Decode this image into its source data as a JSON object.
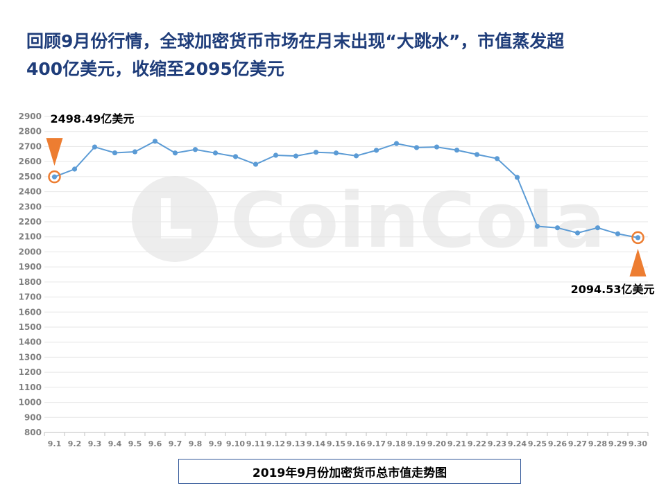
{
  "headline": {
    "line1": "回顾9月份行情，全球加密货币市场在月末出现“大跳水”，市值蒸发超",
    "line2": "400亿美元，收缩至2095亿美元"
  },
  "watermark": {
    "text": "CoinCola"
  },
  "chart_data": {
    "type": "line",
    "title": "2019年9月份加密货币总市值走势图",
    "xlabel": "",
    "ylabel": "",
    "ylim": [
      800,
      2900
    ],
    "yticks": [
      800,
      900,
      1000,
      1100,
      1200,
      1300,
      1400,
      1500,
      1600,
      1700,
      1800,
      1900,
      2000,
      2100,
      2200,
      2300,
      2400,
      2500,
      2600,
      2700,
      2800,
      2900
    ],
    "grid": true,
    "categories": [
      "9.1",
      "9.2",
      "9.3",
      "9.4",
      "9.5",
      "9.6",
      "9.7",
      "9.8",
      "9.9",
      "9.10",
      "9.11",
      "9.12",
      "9.13",
      "9.14",
      "9.15",
      "9.16",
      "9.17",
      "9.18",
      "9.19",
      "9.20",
      "9.21",
      "9.22",
      "9.23",
      "9.24",
      "9.25",
      "9.26",
      "9.27",
      "9.28",
      "9.29",
      "9.30"
    ],
    "series": [
      {
        "values": [
          2498.49,
          2550,
          2697,
          2658,
          2665,
          2735,
          2657,
          2680,
          2657,
          2633,
          2582,
          2642,
          2637,
          2662,
          2657,
          2638,
          2675,
          2720,
          2693,
          2697,
          2676,
          2647,
          2620,
          2495,
          2170,
          2160,
          2126,
          2160,
          2120,
          2094.53
        ],
        "color": "#5b9bd5"
      }
    ],
    "annotations": [
      {
        "index": 0,
        "label": "2498.49亿美元",
        "color": "#ed7d31"
      },
      {
        "index": 29,
        "label": "2094.53亿美元",
        "color": "#ed7d31"
      }
    ]
  }
}
